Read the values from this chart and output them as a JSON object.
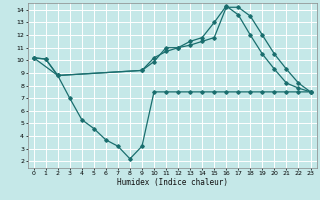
{
  "xlabel": "Humidex (Indice chaleur)",
  "bg_color": "#c5e8e8",
  "grid_color": "#ffffff",
  "line_color": "#1a6e6e",
  "xlim": [
    -0.5,
    23.5
  ],
  "ylim": [
    1.5,
    14.5
  ],
  "xticks": [
    0,
    1,
    2,
    3,
    4,
    5,
    6,
    7,
    8,
    9,
    10,
    11,
    12,
    13,
    14,
    15,
    16,
    17,
    18,
    19,
    20,
    21,
    22,
    23
  ],
  "yticks": [
    2,
    3,
    4,
    5,
    6,
    7,
    8,
    9,
    10,
    11,
    12,
    13,
    14
  ],
  "line1_x": [
    0,
    1,
    2,
    3,
    4,
    5,
    6,
    7,
    8,
    9,
    10,
    11,
    12,
    13,
    14,
    15,
    16,
    17,
    18,
    19,
    20,
    21,
    22,
    23
  ],
  "line1_y": [
    10.2,
    10.1,
    8.8,
    7.0,
    5.3,
    4.6,
    3.7,
    3.2,
    2.2,
    3.2,
    7.5,
    7.5,
    7.5,
    7.5,
    7.5,
    7.5,
    7.5,
    7.5,
    7.5,
    7.5,
    7.5,
    7.5,
    7.5,
    7.5
  ],
  "line2_x": [
    0,
    1,
    2,
    9,
    10,
    11,
    12,
    13,
    14,
    15,
    16,
    17,
    18,
    19,
    20,
    21,
    22,
    23
  ],
  "line2_y": [
    10.2,
    10.1,
    8.8,
    9.2,
    9.9,
    11.0,
    11.0,
    11.5,
    11.8,
    13.0,
    14.3,
    13.6,
    12.0,
    10.5,
    9.3,
    8.2,
    7.8,
    7.5
  ],
  "line3_x": [
    0,
    2,
    9,
    10,
    11,
    12,
    13,
    14,
    15,
    16,
    17,
    18,
    19,
    20,
    21,
    22,
    23
  ],
  "line3_y": [
    10.2,
    8.8,
    9.2,
    10.2,
    10.7,
    11.0,
    11.2,
    11.5,
    11.8,
    14.2,
    14.2,
    13.5,
    12.0,
    10.5,
    9.3,
    8.2,
    7.5
  ]
}
